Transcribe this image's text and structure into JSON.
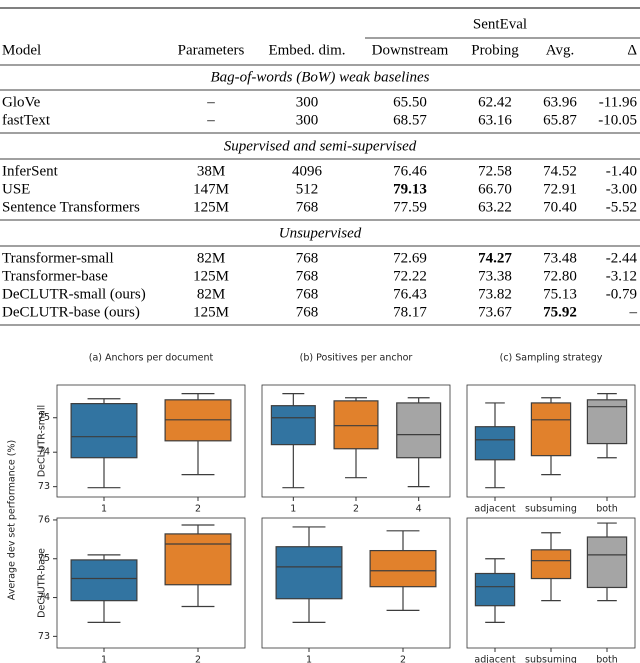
{
  "table": {
    "group_header": "SentEval",
    "columns": [
      "Model",
      "Parameters",
      "Embed. dim.",
      "Downstream",
      "Probing",
      "Avg.",
      "Δ"
    ],
    "sections": [
      {
        "title": "Bag-of-words (BoW) weak baselines",
        "rows": [
          [
            "GloVe",
            "–",
            "300",
            "65.50",
            "62.42",
            "63.96",
            "-11.96"
          ],
          [
            "fastText",
            "–",
            "300",
            "68.57",
            "63.16",
            "65.87",
            "-10.05"
          ]
        ]
      },
      {
        "title": "Supervised and semi-supervised",
        "rows": [
          [
            "InferSent",
            "38M",
            "4096",
            "76.46",
            "72.58",
            "74.52",
            "-1.40"
          ],
          [
            "USE",
            "147M",
            "512",
            "79.13",
            "66.70",
            "72.91",
            "-3.00"
          ],
          [
            "Sentence Transformers",
            "125M",
            "768",
            "77.59",
            "63.22",
            "70.40",
            "-5.52"
          ]
        ]
      },
      {
        "title": "Unsupervised",
        "rows": [
          [
            "Transformer-small",
            "82M",
            "768",
            "72.69",
            "74.27",
            "73.48",
            "-2.44"
          ],
          [
            "Transformer-base",
            "125M",
            "768",
            "72.22",
            "73.38",
            "72.80",
            "-3.12"
          ],
          [
            "DeCLUTR-small (ours)",
            "82M",
            "768",
            "76.43",
            "73.82",
            "75.13",
            "-0.79"
          ],
          [
            "DeCLUTR-base (ours)",
            "125M",
            "768",
            "78.17",
            "73.67",
            "75.92",
            "–"
          ]
        ]
      }
    ],
    "bold": [
      [
        1,
        1,
        3
      ],
      [
        2,
        0,
        4
      ],
      [
        2,
        3,
        5
      ]
    ]
  },
  "chart_data": {
    "type": "box",
    "ylabel": "Average dev set performance (%)",
    "titles": [
      "(a) Anchors per document",
      "(b) Positives per anchor",
      "(c) Sampling strategy"
    ],
    "rows": [
      {
        "name": "DeCLUTR-small",
        "ylim": [
          72.7,
          75.95
        ],
        "yticks": [
          73,
          74,
          75
        ],
        "panels": [
          {
            "categories": [
              "1",
              "2"
            ],
            "colors": [
              "#3274a1",
              "#e1812c"
            ],
            "boxes": [
              [
                72.97,
                73.84,
                74.45,
                75.41,
                75.55
              ],
              [
                73.35,
                74.33,
                74.94,
                75.52,
                75.7
              ]
            ]
          },
          {
            "categories": [
              "1",
              "2",
              "4"
            ],
            "colors": [
              "#3274a1",
              "#e1812c",
              "#a5a5a5"
            ],
            "boxes": [
              [
                72.97,
                74.22,
                75.0,
                75.35,
                75.7
              ],
              [
                73.26,
                74.1,
                74.77,
                75.49,
                75.58
              ],
              [
                73.0,
                73.84,
                74.51,
                75.43,
                75.58
              ]
            ]
          },
          {
            "categories": [
              "adjacent",
              "subsuming",
              "both"
            ],
            "colors": [
              "#3274a1",
              "#e1812c",
              "#a5a5a5"
            ],
            "boxes": [
              [
                72.97,
                73.78,
                74.36,
                74.74,
                75.43
              ],
              [
                73.35,
                73.9,
                74.94,
                75.43,
                75.58
              ],
              [
                73.84,
                74.25,
                75.32,
                75.52,
                75.7
              ]
            ]
          }
        ]
      },
      {
        "name": "DeCLUTR-base",
        "ylim": [
          72.7,
          76.05
        ],
        "yticks": [
          73,
          74,
          75,
          76
        ],
        "panels": [
          {
            "categories": [
              "1",
              "2"
            ],
            "colors": [
              "#3274a1",
              "#e1812c"
            ],
            "boxes": [
              [
                73.36,
                73.92,
                74.49,
                74.97,
                75.1
              ],
              [
                73.77,
                74.33,
                75.38,
                75.64,
                75.87
              ]
            ]
          },
          {
            "categories": [
              "1",
              "2"
            ],
            "colors": [
              "#3274a1",
              "#e1812c"
            ],
            "boxes": [
              [
                73.36,
                73.97,
                74.79,
                75.31,
                75.82
              ],
              [
                73.67,
                74.28,
                74.69,
                75.21,
                75.72
              ]
            ]
          },
          {
            "categories": [
              "adjacent",
              "subsuming",
              "both"
            ],
            "colors": [
              "#3274a1",
              "#e1812c",
              "#a5a5a5"
            ],
            "boxes": [
              [
                73.36,
                73.79,
                74.28,
                74.62,
                75.0
              ],
              [
                73.92,
                74.49,
                74.95,
                75.23,
                75.67
              ],
              [
                73.92,
                74.26,
                75.1,
                75.56,
                75.92
              ]
            ]
          }
        ]
      }
    ]
  }
}
